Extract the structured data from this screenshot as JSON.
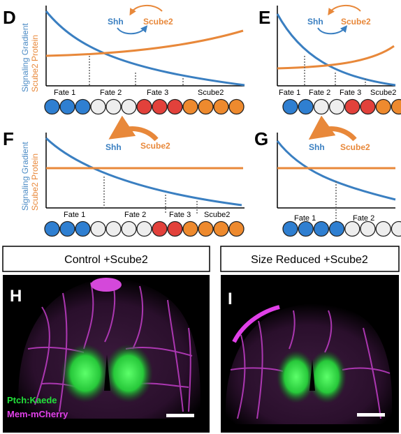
{
  "colors": {
    "blue": "#3a7fc1",
    "orange": "#e8883a",
    "cell_blue": "#2f7fd1",
    "cell_white": "#eeeeee",
    "cell_red": "#e2413b",
    "cell_orange": "#ee8a2e",
    "green": "#22e03a",
    "magenta": "#e040e8"
  },
  "panels": {
    "D": {
      "letter": "D",
      "y_label_line1": "Signaling Gradient",
      "y_label_line2": "Scube2 Protein",
      "shh_label": "Shh",
      "scube_label": "Scube2",
      "fates": [
        "Fate 1",
        "Fate 2",
        "Fate 3",
        "Scube2"
      ],
      "cells": [
        "blue",
        "blue",
        "blue",
        "white",
        "white",
        "white",
        "red",
        "red",
        "red",
        "orange",
        "orange",
        "orange",
        "orange"
      ]
    },
    "E": {
      "letter": "E",
      "shh_label": "Shh",
      "scube_label": "Scube2",
      "fates": [
        "Fate 1",
        "Fate 2",
        "Fate 3",
        "Scube2"
      ],
      "cells": [
        "blue",
        "blue",
        "white",
        "white",
        "red",
        "red",
        "orange",
        "orange"
      ]
    },
    "F": {
      "letter": "F",
      "y_label_line1": "Signaling Gradient",
      "y_label_line2": "Scube2 Protein",
      "shh_label": "Shh",
      "scube_label": "Scube2",
      "fates": [
        "Fate 1",
        "Fate 2",
        "Fate 3",
        "Scube2"
      ],
      "cells": [
        "blue",
        "blue",
        "blue",
        "white",
        "white",
        "white",
        "white",
        "red",
        "red",
        "orange",
        "orange",
        "orange",
        "orange"
      ]
    },
    "G": {
      "letter": "G",
      "shh_label": "Shh",
      "scube_label": "Scube2",
      "fates": [
        "Fate 1",
        "Fate 2"
      ],
      "cells": [
        "blue",
        "blue",
        "blue",
        "blue",
        "white",
        "white",
        "white",
        "white"
      ]
    }
  },
  "microscopy": {
    "H": {
      "letter": "H",
      "title": "Control +Scube2",
      "legend_green": "Ptch:Kaede",
      "legend_magenta": "Mem-mCherry"
    },
    "I": {
      "letter": "I",
      "title": "Size Reduced +Scube2"
    }
  }
}
